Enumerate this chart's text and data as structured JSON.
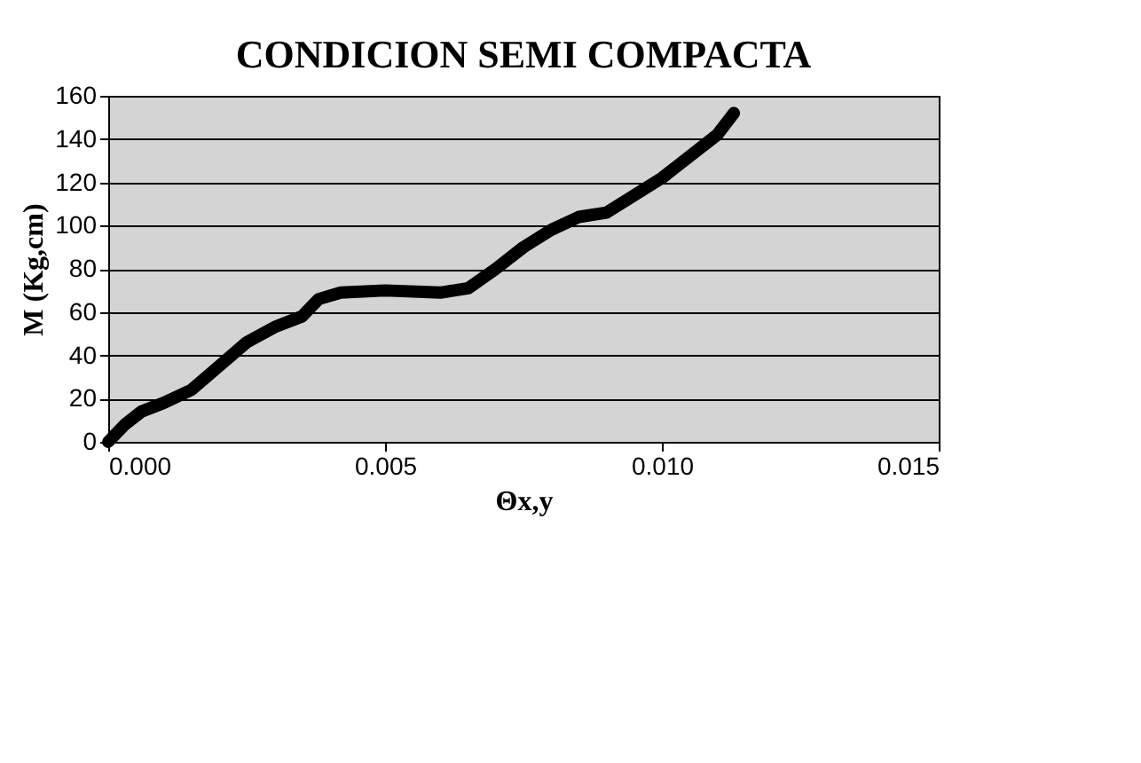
{
  "chart_data": {
    "type": "line",
    "title": "CONDICION SEMI COMPACTA",
    "xlabel": "Θx,y",
    "ylabel": "M (Kg,cm)",
    "series": [
      {
        "color": "#000000",
        "x": [
          0,
          0.0003,
          0.0006,
          0.001,
          0.0015,
          0.002,
          0.0025,
          0.003,
          0.0035,
          0.0038,
          0.0042,
          0.005,
          0.006,
          0.0065,
          0.007,
          0.0075,
          0.008,
          0.0085,
          0.009,
          0.0095,
          0.01,
          0.0105,
          0.011,
          0.0113
        ],
        "values": [
          0,
          8,
          14,
          18,
          24,
          35,
          46,
          53,
          58,
          66,
          69,
          70,
          69,
          71,
          80,
          90,
          98,
          104,
          106,
          114,
          122,
          132,
          142,
          152
        ]
      }
    ],
    "xlim": [
      0,
      0.015
    ],
    "xticks": [
      {
        "value": 0,
        "label": "0.000"
      },
      {
        "value": 0.005,
        "label": "0.005"
      },
      {
        "value": 0.01,
        "label": "0.010"
      },
      {
        "value": 0.015,
        "label": "0.015"
      }
    ],
    "ylim": [
      0,
      160
    ],
    "yticks": [
      0,
      20,
      40,
      60,
      80,
      100,
      120,
      140,
      160
    ],
    "grid": "y",
    "line_style": "solid"
  }
}
